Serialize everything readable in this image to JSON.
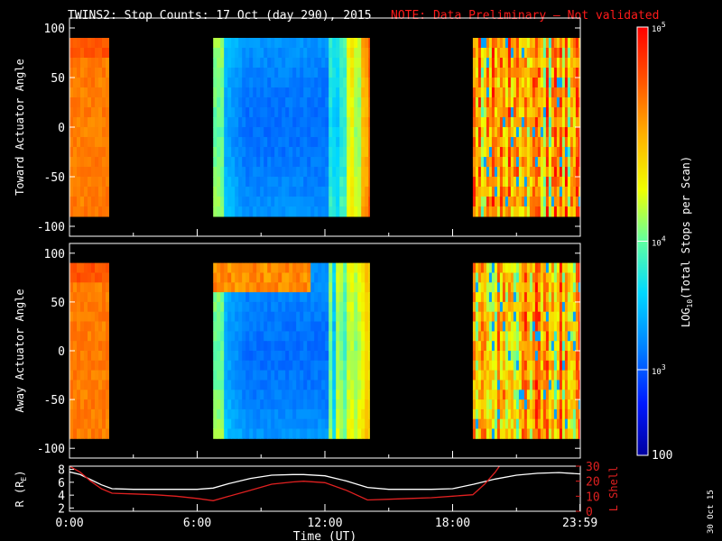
{
  "title": {
    "main": "TWINS2: Stop Counts: 17 Oct (day 290), 2015",
    "note": "NOTE: Data Preliminary – Not validated"
  },
  "date_stamp": "30 Oct 15",
  "colors": {
    "background": "#000000",
    "text": "#ffffff",
    "note": "#ff1a1a",
    "r_line": "#ffffff",
    "lshell_line": "#e02020",
    "lshell_axis": "#e02020"
  },
  "chart_data": [
    {
      "type": "heatmap",
      "name": "toward-panel",
      "ylabel": "Toward Actuator Angle",
      "ylim": [
        -110,
        110
      ],
      "yticks": [
        100,
        50,
        0,
        -50,
        -100
      ],
      "xlim": [
        0,
        24
      ],
      "data_ylim": [
        -90,
        90
      ],
      "data_blocks": [
        {
          "t0": 0.0,
          "t1": 1.85,
          "profile": "orange"
        },
        {
          "t0": 6.75,
          "t1": 14.1,
          "profile": "blue_mid"
        },
        {
          "t0": 18.95,
          "t1": 23.99,
          "profile": "noisy"
        }
      ]
    },
    {
      "type": "heatmap",
      "name": "away-panel",
      "ylabel": "Away Actuator Angle",
      "ylim": [
        -110,
        110
      ],
      "yticks": [
        100,
        50,
        0,
        -50,
        -100
      ],
      "xlim": [
        0,
        24
      ],
      "data_ylim": [
        -90,
        90
      ],
      "data_blocks": [
        {
          "t0": 0.0,
          "t1": 1.85,
          "profile": "orange"
        },
        {
          "t0": 6.75,
          "t1": 14.1,
          "profile": "blue_mid_top"
        },
        {
          "t0": 18.95,
          "t1": 23.99,
          "profile": "noisy"
        }
      ]
    },
    {
      "type": "line",
      "name": "orbit-panel",
      "xlabel": "Time (UT)",
      "xlim": [
        0,
        24
      ],
      "xticks": [
        0,
        6,
        12,
        18,
        23.983
      ],
      "xtick_labels": [
        "0:00",
        "6:00",
        "12:00",
        "18:00",
        "23:59"
      ],
      "left_axis": {
        "label_main": "R (R",
        "label_sub": "E",
        "label_end": ")",
        "ylim": [
          1.5,
          8.5
        ],
        "yticks": [
          2,
          4,
          6,
          8
        ]
      },
      "right_axis": {
        "label": "L Shell",
        "ylim": [
          0,
          30
        ],
        "yticks": [
          0,
          10,
          20,
          30
        ]
      },
      "series": [
        {
          "name": "R",
          "axis": "left",
          "color": "#ffffff",
          "x": [
            0,
            0.5,
            1.0,
            1.5,
            2.0,
            3.0,
            4.0,
            5.0,
            6.0,
            6.75,
            7.5,
            8.5,
            9.5,
            10.5,
            11.0,
            12.0,
            13.0,
            14.0,
            15.0,
            16.0,
            17.0,
            18.0,
            19.0,
            20.0,
            21.0,
            22.0,
            23.0,
            23.99
          ],
          "y": [
            7.6,
            7.2,
            6.4,
            5.6,
            5.0,
            4.9,
            4.9,
            4.9,
            4.9,
            5.1,
            5.8,
            6.6,
            7.1,
            7.2,
            7.2,
            7.0,
            6.2,
            5.2,
            4.9,
            4.9,
            4.9,
            5.0,
            5.7,
            6.5,
            7.1,
            7.4,
            7.5,
            7.3
          ]
        },
        {
          "name": "L Shell",
          "axis": "right",
          "color": "#e02020",
          "x": [
            0,
            0.5,
            1.0,
            1.5,
            2.0,
            3.0,
            4.0,
            5.0,
            6.0,
            6.75,
            7.5,
            8.5,
            9.5,
            10.5,
            11.0,
            12.0,
            13.0,
            14.0,
            15.0,
            16.0,
            17.0,
            18.0,
            18.95,
            19.5,
            20.0,
            20.3
          ],
          "y": [
            30,
            26,
            20,
            15,
            12,
            11.5,
            11,
            10,
            8.5,
            7,
            10,
            14,
            18,
            19.5,
            20,
            19,
            14,
            7.5,
            8,
            8.5,
            9,
            10,
            11,
            18,
            26,
            32
          ]
        }
      ]
    }
  ],
  "colorbar": {
    "label_prefix": "LOG",
    "label_sub": "10",
    "label_suffix": "(Total Stops per Scan)",
    "min_label": "100",
    "ticks": [
      {
        "base": "10",
        "exp": "5",
        "frac": 1.0
      },
      {
        "base": "10",
        "exp": "4",
        "frac": 0.5
      },
      {
        "base": "10",
        "exp": "3",
        "frac": 0.2
      }
    ],
    "min_frac": 0.0
  }
}
